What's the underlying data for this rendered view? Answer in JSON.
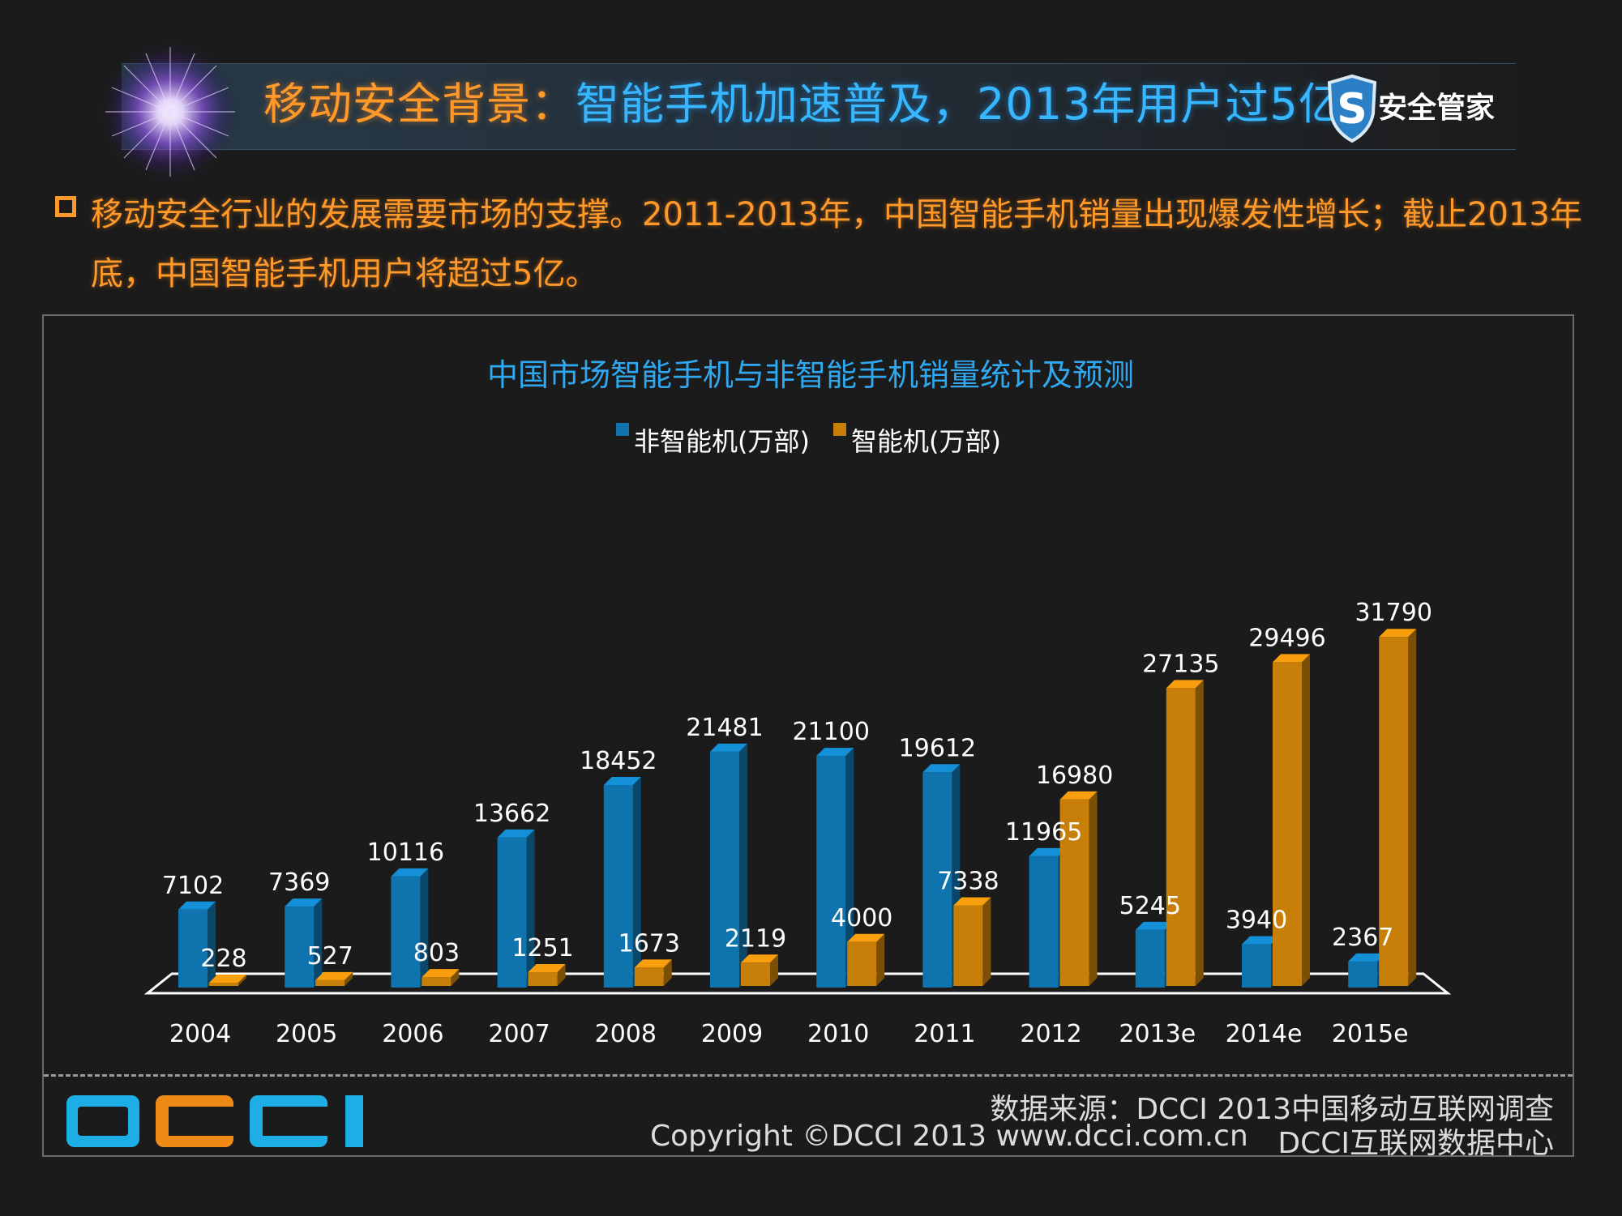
{
  "header": {
    "title_part1": "移动安全背景：",
    "title_part2": "智能手机加速普及，2013年用户过5亿",
    "brand": "安全管家",
    "brand_glyph": "S"
  },
  "bullet": {
    "line1": "移动安全行业的发展需要市场的支撑。2011-2013年，中国智能手机销量出现爆发性增长；截止2013年",
    "line2": "底，中国智能手机用户将超过5亿。"
  },
  "chart_data": {
    "type": "bar",
    "title": "中国市场智能手机与非智能手机销量统计及预测",
    "categories": [
      "2004",
      "2005",
      "2006",
      "2007",
      "2008",
      "2009",
      "2010",
      "2011",
      "2012",
      "2013e",
      "2014e",
      "2015e"
    ],
    "series": [
      {
        "name": "非智能机(万部)",
        "color": "#0f73ad",
        "values": [
          7102,
          7369,
          10116,
          13662,
          18452,
          21481,
          21100,
          19612,
          11965,
          5245,
          3940,
          2367
        ]
      },
      {
        "name": "智能机(万部)",
        "color": "#c77f0a",
        "values": [
          228,
          527,
          803,
          1251,
          1673,
          2119,
          4000,
          7338,
          16980,
          27135,
          29496,
          31790
        ]
      }
    ],
    "ylim": [
      0,
      32000
    ],
    "legend": "top-center",
    "grid": false,
    "style": "3d-clustered-column"
  },
  "footer": {
    "logo": "DCCI",
    "source": "数据来源：DCCI 2013中国移动互联网调查",
    "copyright": "Copyright ©DCCI 2013 www.dcci.com.cn",
    "center": "DCCI互联网数据中心"
  }
}
